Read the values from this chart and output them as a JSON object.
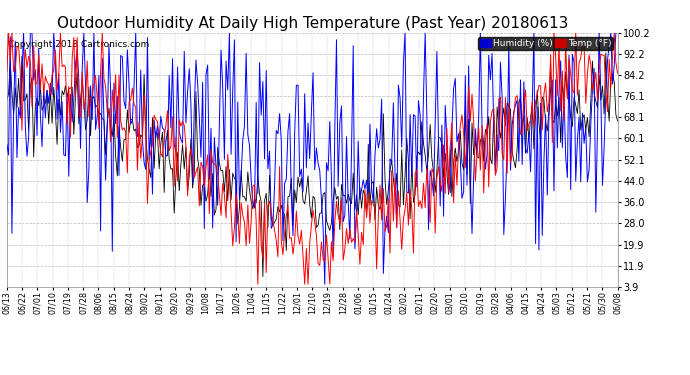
{
  "title": "Outdoor Humidity At Daily High Temperature (Past Year) 20180613",
  "copyright": "Copyright 2018 Cartronics.com",
  "yticks": [
    3.9,
    11.9,
    19.9,
    28.0,
    36.0,
    44.0,
    52.1,
    60.1,
    68.1,
    76.1,
    84.2,
    92.2,
    100.2
  ],
  "xtick_labels": [
    "06/13",
    "06/22",
    "07/01",
    "07/10",
    "07/19",
    "07/28",
    "08/06",
    "08/15",
    "08/24",
    "09/02",
    "09/11",
    "09/20",
    "09/29",
    "10/08",
    "10/17",
    "10/26",
    "11/04",
    "11/15",
    "11/22",
    "12/01",
    "12/10",
    "12/19",
    "12/28",
    "01/06",
    "01/15",
    "01/24",
    "02/02",
    "02/11",
    "02/20",
    "03/01",
    "03/10",
    "03/19",
    "03/28",
    "04/06",
    "04/15",
    "04/24",
    "05/03",
    "05/12",
    "05/21",
    "05/30",
    "06/08"
  ],
  "humidity_color": "#0000ff",
  "temp_color": "#ff0000",
  "black_color": "#000000",
  "background_color": "#ffffff",
  "grid_color": "#bbbbbb",
  "title_fontsize": 11,
  "legend_humidity_label": "Humidity (%)",
  "legend_temp_label": "Temp (°F)",
  "legend_humidity_bg": "#0000cc",
  "legend_temp_bg": "#cc0000",
  "ymin": 3.9,
  "ymax": 100.2,
  "n_points": 366
}
